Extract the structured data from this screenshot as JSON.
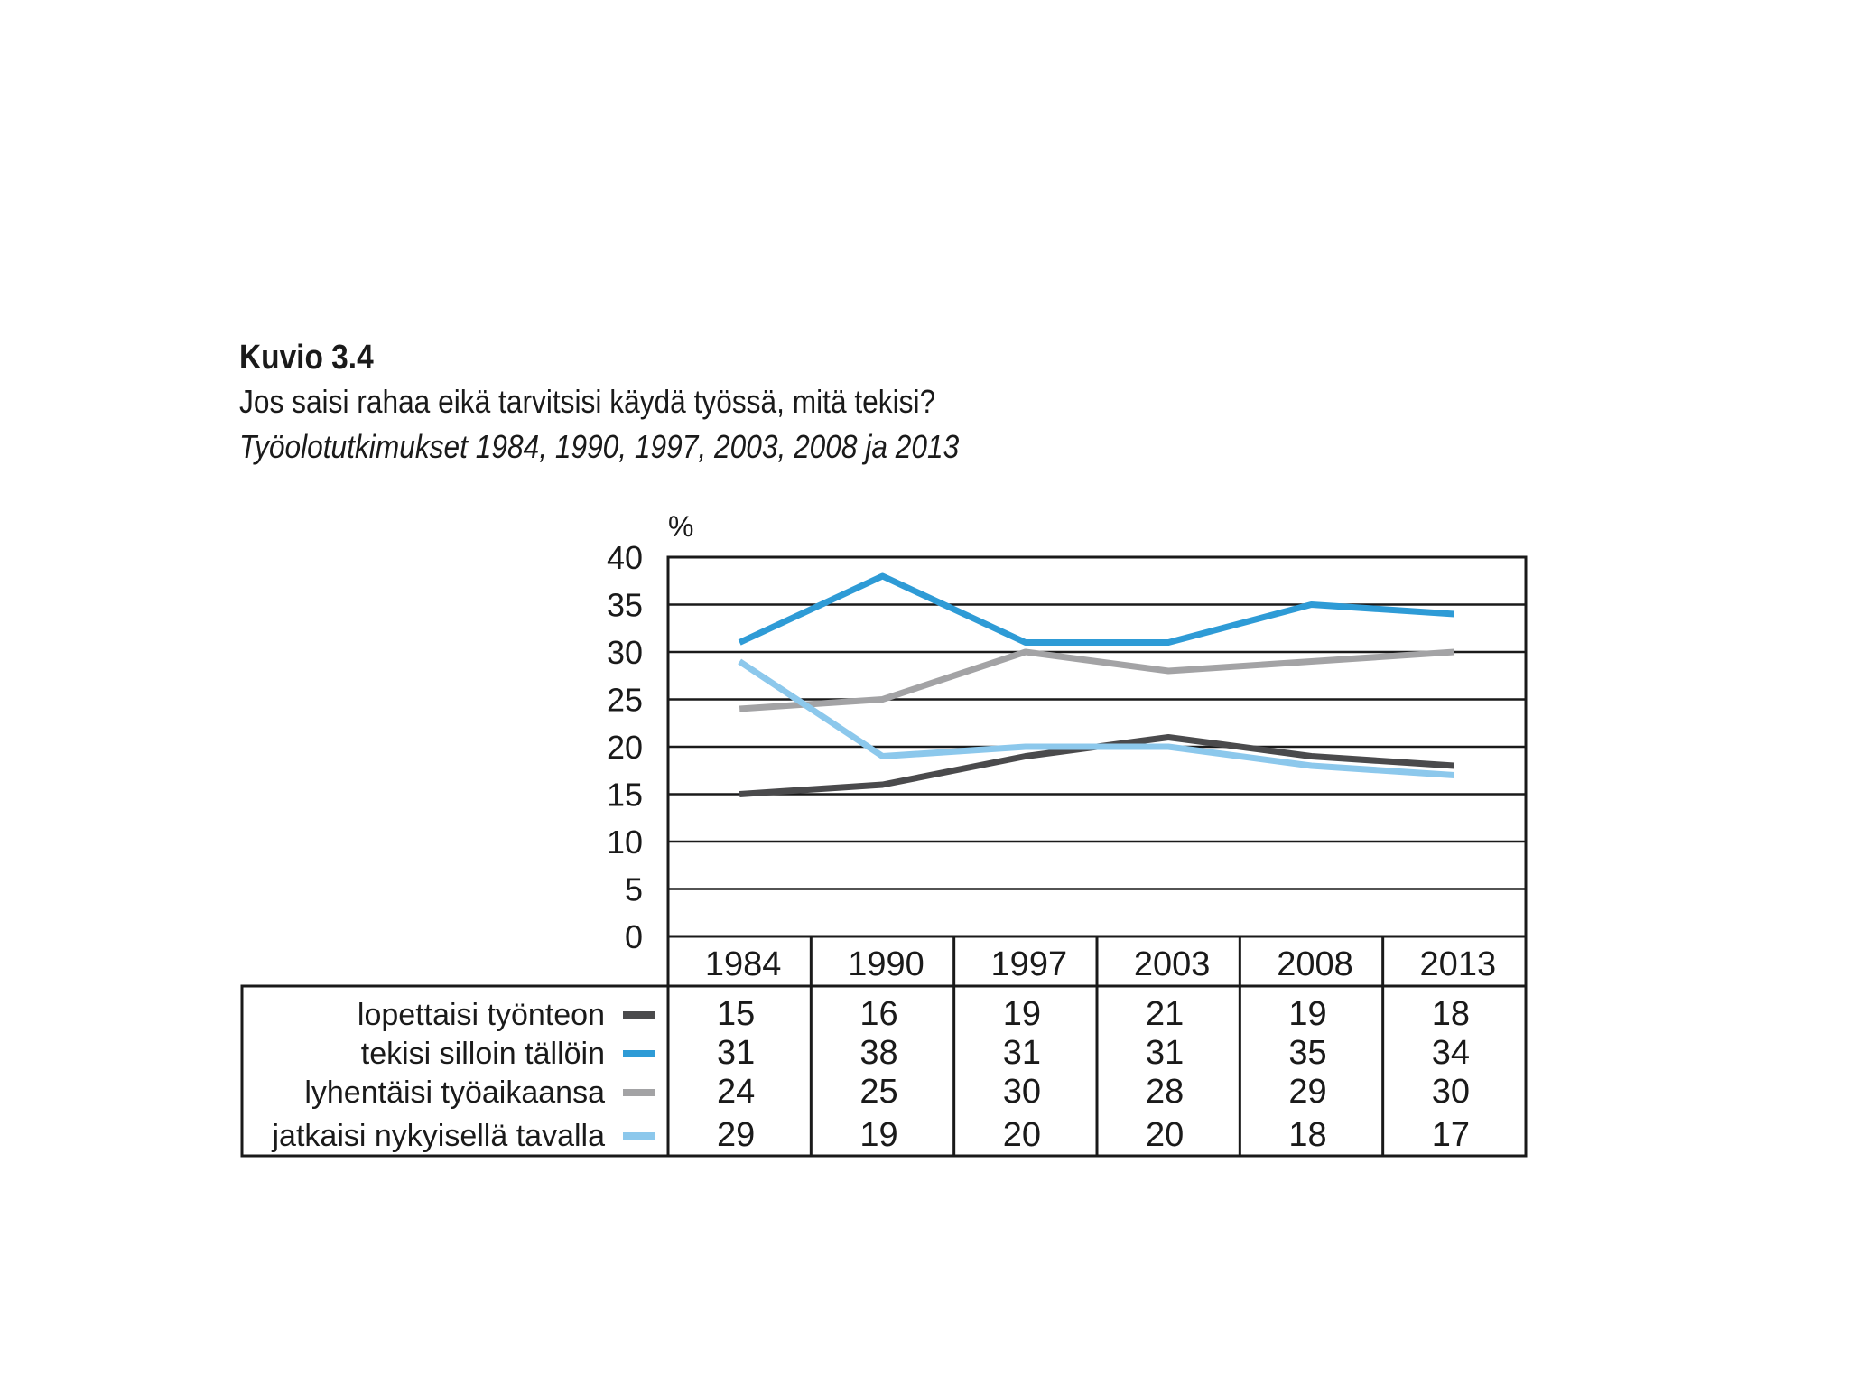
{
  "figure": {
    "label": "Kuvio 3.4",
    "title": "Jos saisi rahaa eikä tarvitsisi käydä työssä, mitä tekisi?",
    "subtitle": "Työolotutkimukset 1984, 1990, 1997, 2003, 2008 ja 2013"
  },
  "chart_data": {
    "type": "line",
    "title": "Jos saisi rahaa eikä tarvitsisi käydä työssä, mitä tekisi?",
    "ylabel": "%",
    "ylim": [
      0,
      40
    ],
    "yticks": [
      0,
      5,
      10,
      15,
      20,
      25,
      30,
      35,
      40
    ],
    "grid": true,
    "legend": "table-left",
    "x": [
      "1984",
      "1990",
      "1997",
      "2003",
      "2008",
      "2013"
    ],
    "series": [
      {
        "name": "lopettaisi työnteon",
        "color": "#4a4a4c",
        "values": [
          15,
          16,
          19,
          21,
          19,
          18
        ]
      },
      {
        "name": "tekisi silloin tällöin",
        "color": "#2e9bd6",
        "values": [
          31,
          38,
          31,
          31,
          35,
          34
        ]
      },
      {
        "name": "lyhentäisi työaikaansa",
        "color": "#a3a3a5",
        "values": [
          24,
          25,
          30,
          28,
          29,
          30
        ]
      },
      {
        "name": "jatkaisi nykyisellä tavalla",
        "color": "#8cc8ec",
        "values": [
          29,
          19,
          20,
          20,
          18,
          17
        ]
      }
    ]
  }
}
